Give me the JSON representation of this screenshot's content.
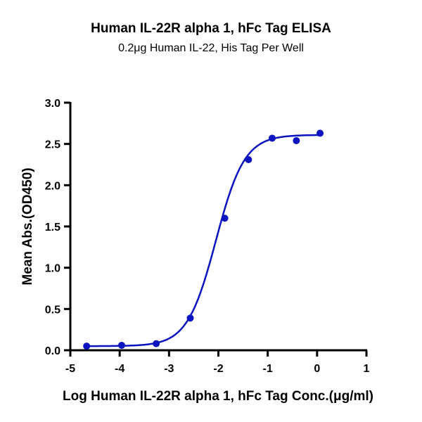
{
  "chart_data": {
    "type": "scatter",
    "title": "Human IL-22R alpha 1, hFc Tag ELISA",
    "subtitle": "0.2μg Human IL-22, His Tag Per Well",
    "xlabel": "Log Human IL-22R alpha 1, hFc Tag Conc.(μg/ml)",
    "ylabel": "Mean Abs.(OD450)",
    "xlim": [
      -5,
      1
    ],
    "ylim": [
      0,
      3.0
    ],
    "xticks": [
      "-5",
      "-4",
      "-3",
      "-2",
      "-1",
      "0",
      "1"
    ],
    "yticks": [
      "0.0",
      "0.5",
      "1.0",
      "1.5",
      "2.0",
      "2.5",
      "3.0"
    ],
    "grid": false,
    "color": "#0a14c0",
    "points": [
      {
        "x": -4.67,
        "y": 0.05
      },
      {
        "x": -3.96,
        "y": 0.06
      },
      {
        "x": -3.26,
        "y": 0.08
      },
      {
        "x": -2.57,
        "y": 0.39
      },
      {
        "x": -1.87,
        "y": 1.6
      },
      {
        "x": -1.39,
        "y": 2.31
      },
      {
        "x": -0.91,
        "y": 2.57
      },
      {
        "x": -0.42,
        "y": 2.54
      },
      {
        "x": 0.06,
        "y": 2.63
      }
    ],
    "fit": {
      "model": "4PL",
      "bottom": 0.05,
      "top": 2.61,
      "log_ec50": -2.05,
      "hill_slope": 1.5
    }
  }
}
